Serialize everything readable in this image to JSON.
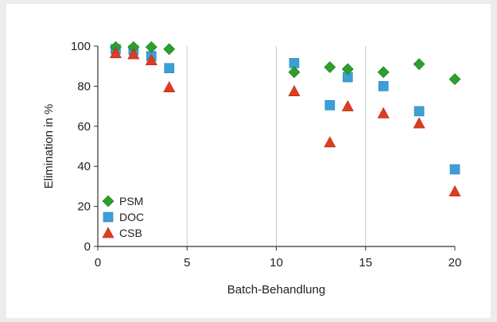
{
  "chart_data": {
    "type": "scatter",
    "title": "",
    "xlabel": "Batch-Behandlung",
    "ylabel": "Elimination  in %",
    "xlim": [
      0,
      20
    ],
    "ylim": [
      0,
      100
    ],
    "xticks": [
      0,
      5,
      10,
      15,
      20
    ],
    "yticks": [
      0,
      20,
      40,
      60,
      80,
      100
    ],
    "x_gridlines": [
      5,
      10,
      15
    ],
    "legend_position": "bottom-left",
    "series": [
      {
        "name": "PSM",
        "marker": "diamond",
        "color": "#2ca02c",
        "points": [
          {
            "x": 1,
            "y": 99.5
          },
          {
            "x": 2,
            "y": 99.5
          },
          {
            "x": 3,
            "y": 99.5
          },
          {
            "x": 4,
            "y": 98.5
          },
          {
            "x": 11,
            "y": 87
          },
          {
            "x": 13,
            "y": 89.5
          },
          {
            "x": 14,
            "y": 88.5
          },
          {
            "x": 16,
            "y": 87
          },
          {
            "x": 18,
            "y": 91
          },
          {
            "x": 20,
            "y": 83.5
          }
        ]
      },
      {
        "name": "DOC",
        "marker": "square",
        "color": "#3b9fd8",
        "points": [
          {
            "x": 1,
            "y": 98.5
          },
          {
            "x": 2,
            "y": 98
          },
          {
            "x": 3,
            "y": 95
          },
          {
            "x": 4,
            "y": 89
          },
          {
            "x": 11,
            "y": 91.5
          },
          {
            "x": 13,
            "y": 70.5
          },
          {
            "x": 14,
            "y": 84.5
          },
          {
            "x": 16,
            "y": 80
          },
          {
            "x": 18,
            "y": 67.5
          },
          {
            "x": 20,
            "y": 38.5
          }
        ]
      },
      {
        "name": "CSB",
        "marker": "triangle",
        "color": "#e03c1f",
        "points": [
          {
            "x": 1,
            "y": 96.5
          },
          {
            "x": 2,
            "y": 96
          },
          {
            "x": 3,
            "y": 93
          },
          {
            "x": 4,
            "y": 79.5
          },
          {
            "x": 11,
            "y": 77.5
          },
          {
            "x": 13,
            "y": 52
          },
          {
            "x": 14,
            "y": 70
          },
          {
            "x": 16,
            "y": 66.5
          },
          {
            "x": 18,
            "y": 61.5
          },
          {
            "x": 20,
            "y": 27.5
          }
        ]
      }
    ]
  }
}
